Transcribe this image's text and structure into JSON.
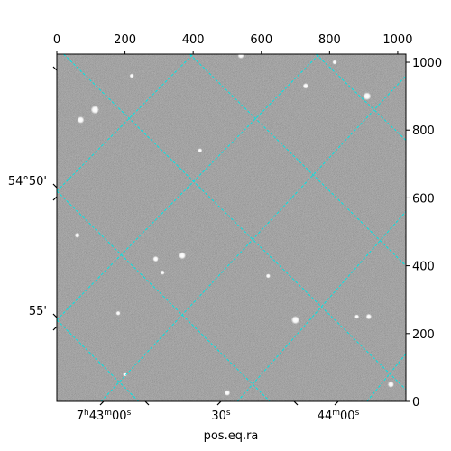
{
  "chart_data": {
    "type": "image",
    "description_free": true,
    "xlabel": "pos.eq.ra",
    "ylabel": "",
    "pixel_axis": {
      "x_range": [
        0,
        1024
      ],
      "y_range": [
        0,
        1024
      ],
      "x_ticks": [
        0,
        200,
        400,
        600,
        800,
        1000
      ],
      "y_ticks": [
        0,
        200,
        400,
        600,
        800,
        1000
      ]
    },
    "ra_ticks": [
      {
        "hours": "7",
        "minutes": "43",
        "seconds": "00",
        "label_parts": [
          "7",
          "h",
          "43",
          "m",
          "00",
          "s"
        ],
        "value_s": 0
      },
      {
        "label_parts": [
          "30",
          "s"
        ],
        "value_s": 30
      },
      {
        "minutes": "44",
        "seconds": "00",
        "label_parts": [
          "44",
          "m",
          "00",
          "s"
        ],
        "value_s": 60
      }
    ],
    "dec_ticks": [
      {
        "label": "54°50'",
        "value_arcmin": -50
      },
      {
        "label": "55'",
        "value_arcmin": -55
      }
    ],
    "grid": true,
    "grid_color": "#00e5e5",
    "image_colormap": "gray",
    "stars": [
      {
        "x": 112,
        "y": 860,
        "brightness": 1.0
      },
      {
        "x": 70,
        "y": 830,
        "brightness": 0.8
      },
      {
        "x": 910,
        "y": 900,
        "brightness": 0.95
      },
      {
        "x": 730,
        "y": 930,
        "brightness": 0.6
      },
      {
        "x": 700,
        "y": 240,
        "brightness": 1.0
      },
      {
        "x": 368,
        "y": 430,
        "brightness": 0.8
      },
      {
        "x": 290,
        "y": 420,
        "brightness": 0.6
      },
      {
        "x": 915,
        "y": 250,
        "brightness": 0.6
      },
      {
        "x": 980,
        "y": 50,
        "brightness": 0.7
      },
      {
        "x": 500,
        "y": 25,
        "brightness": 0.6
      },
      {
        "x": 540,
        "y": 1020,
        "brightness": 0.7
      },
      {
        "x": 60,
        "y": 490,
        "brightness": 0.5
      },
      {
        "x": 310,
        "y": 380,
        "brightness": 0.4
      },
      {
        "x": 200,
        "y": 80,
        "brightness": 0.4
      },
      {
        "x": 180,
        "y": 260,
        "brightness": 0.4
      },
      {
        "x": 620,
        "y": 370,
        "brightness": 0.4
      },
      {
        "x": 815,
        "y": 1000,
        "brightness": 0.4
      },
      {
        "x": 220,
        "y": 960,
        "brightness": 0.4
      },
      {
        "x": 880,
        "y": 250,
        "brightness": 0.4
      },
      {
        "x": 420,
        "y": 740,
        "brightness": 0.4
      }
    ],
    "grid_lines": [
      {
        "kind": "ra",
        "points": [
          [
            0,
            0
          ],
          [
            1024,
            1024
          ]
        ]
      },
      {
        "kind": "ra",
        "points": [
          [
            0,
            558
          ],
          [
            477,
            1024
          ]
        ]
      },
      {
        "kind": "ra",
        "points": [
          [
            453,
            0
          ],
          [
            1024,
            550
          ]
        ]
      },
      {
        "kind": "ra",
        "points": [
          [
            0,
            1024
          ],
          [
            0,
            1024
          ]
        ]
      },
      {
        "kind": "dec",
        "points": [
          [
            0,
            217
          ],
          [
            1024,
            220
          ]
        ]
      },
      {
        "kind": "dec",
        "points": [
          [
            129,
            0
          ],
          [
            413,
            1024
          ]
        ]
      },
      {
        "kind": "dec",
        "points": [
          [
            10,
            1024
          ],
          [
            130,
            1024
          ]
        ]
      },
      {
        "kind": "dec",
        "points": [
          [
            478,
            0
          ],
          [
            1024,
            1024
          ]
        ]
      }
    ]
  }
}
